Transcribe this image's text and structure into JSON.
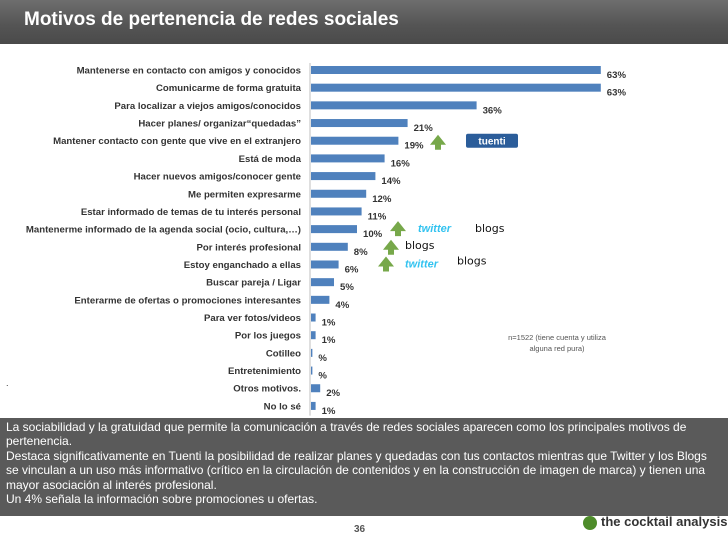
{
  "header": {
    "title": "Motivos de pertenencia de redes sociales"
  },
  "colors": {
    "bar": "#4f81bd",
    "title_bar": "#5a5a5a",
    "arrow": "#77a84a",
    "tuenti": "#2b5d9a",
    "twitter": "#33c3f0"
  },
  "chart_data": {
    "type": "bar",
    "orientation": "horizontal",
    "categories": [
      "Mantenerse en contacto con amigos y conocidos",
      "Comunicarme de forma gratuita",
      "Para localizar a viejos amigos/conocidos",
      "Hacer planes/ organizar“quedadas”",
      "Mantener contacto con gente que vive en el extranjero",
      "Está de moda",
      "Hacer nuevos amigos/conocer gente",
      "Me permiten expresarme",
      "Estar informado de temas de tu interés personal",
      "Mantenerme informado de la agenda social (ocio, cultura,…)",
      "Por interés profesional",
      "Estoy enganchado a ellas",
      "Buscar pareja / Ligar",
      "Enterarme de ofertas o promociones interesantes",
      "Para ver fotos/videos",
      "Por los juegos",
      "Cotilleo",
      "Entretenimiento",
      "Otros motivos.",
      "No lo sé"
    ],
    "values": [
      63,
      63,
      36,
      21,
      19,
      16,
      14,
      12,
      11,
      10,
      8,
      6,
      5,
      4,
      1,
      1,
      0.3,
      0.3,
      2,
      1
    ],
    "value_labels": [
      "63%",
      "63%",
      "36%",
      "21%",
      "19%",
      "16%",
      "14%",
      "12%",
      "11%",
      "10%",
      "8%",
      "6%",
      "5%",
      "4%",
      "1%",
      "1%",
      "%",
      "%",
      "2%",
      "1%"
    ],
    "xlim": [
      0,
      70
    ],
    "note": "n=1522 (tiene cuenta y utiliza alguna red pura)"
  },
  "annotations": {
    "tuenti": {
      "logo_text": "tuenti",
      "row": 4
    },
    "twitter_1": {
      "logo_text": "twitter",
      "extra": "blogs",
      "row": 9
    },
    "blogs_2": {
      "text": "blogs",
      "row": 10
    },
    "twitter_2": {
      "logo_text": "twitter",
      "extra": "blogs",
      "row": 11
    },
    "dot": "."
  },
  "summary": {
    "p1": "La sociabilidad y la gratuidad que permite la comunicación a través de redes sociales aparecen  como los principales motivos de pertenencia.",
    "p2": "Destaca significativamente en Tuenti la posibilidad de realizar planes y quedadas con tus contactos mientras que Twitter y los Blogs se vinculan a un uso más informativo (crítico en la circulación de contenidos y en la construcción de imagen de marca) y tienen una mayor asociación al interés profesional.",
    "p3": "Un 4% señala la información sobre promociones u ofertas."
  },
  "footer": {
    "page": "36",
    "logo_text": "the cocktail analysis"
  }
}
